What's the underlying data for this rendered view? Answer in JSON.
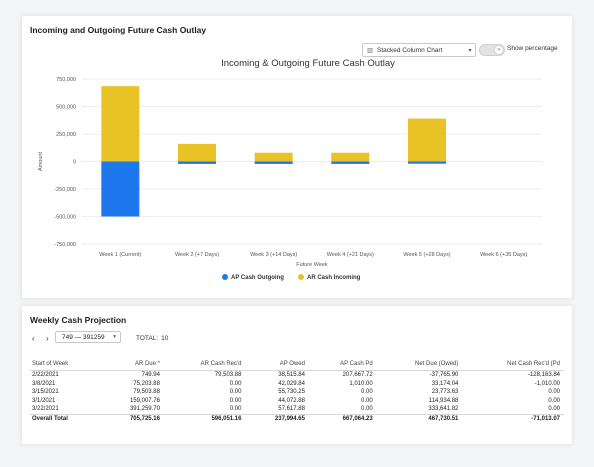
{
  "panel1": {
    "title": "Incoming and Outgoing Future Cash Outlay",
    "chart_type_select": {
      "icon": "bar-chart-icon",
      "value": "Stacked Column Chart"
    },
    "toggle": {
      "label": "Show percentage",
      "on": false
    }
  },
  "colors": {
    "ap": "#1d78f0",
    "ar": "#e9c225",
    "grid": "#e9e9e9",
    "text": "#555555"
  },
  "chart_data": {
    "type": "bar",
    "stacked": true,
    "title": "Incoming & Outgoing Future Cash Outlay",
    "xlabel": "Future Week",
    "ylabel": "Amount",
    "categories": [
      "Week 1 (Current)",
      "Week 2 (+7 Days)",
      "Week 3 (+14 Days)",
      "Week 4 (+21 Days)",
      "Week 5 (+28 Days)",
      "Week 6 (+35 Days)"
    ],
    "series": [
      {
        "name": "AP Cash Outgoing",
        "color": "#1d78f0",
        "values": [
          -500000,
          -22000,
          -22000,
          -22000,
          -20000,
          0
        ]
      },
      {
        "name": "AR Cash Incoming",
        "color": "#e9c225",
        "values": [
          685000,
          160000,
          80000,
          80000,
          390000,
          0
        ]
      }
    ],
    "ylim": [
      -750000,
      750000
    ],
    "yticks": [
      750000,
      500000,
      250000,
      0,
      -250000,
      -500000,
      -750000
    ],
    "ytick_labels": [
      "750,000",
      "500,000",
      "250,000",
      "0",
      "-250,000",
      "-500,000",
      "-750,000"
    ],
    "grid": true,
    "legend_position": "bottom"
  },
  "panel2": {
    "title": "Weekly Cash Projection",
    "pager": {
      "prev": "‹",
      "next": "›"
    },
    "range": "749 — 391259",
    "total_label": "TOTAL:",
    "total_count": "10",
    "columns": [
      "Start of Week",
      "AR Due",
      "AR Cash Rec'd",
      "AP Owed",
      "AP Cash Pd",
      "Net Due (Owed)",
      "Net Cash Rec'd (Pd"
    ],
    "sort_indicator": "*",
    "rows": [
      [
        "2/22/2021",
        "749.94",
        "79,503.88",
        "38,515.84",
        "207,667.72",
        "-37,765.90",
        "-128,163.84"
      ],
      [
        "3/8/2021",
        "75,203.88",
        "0.00",
        "42,029.84",
        "1,010.00",
        "33,174.04",
        "-1,010.00"
      ],
      [
        "3/15/2021",
        "79,503.88",
        "0.00",
        "55,730.25",
        "0.00",
        "23,773.63",
        "0.00"
      ],
      [
        "3/1/2021",
        "159,007.76",
        "0.00",
        "44,072.88",
        "0.00",
        "114,934.88",
        "0.00"
      ],
      [
        "3/22/2021",
        "391,259.70",
        "0.00",
        "57,617.88",
        "0.00",
        "333,641.82",
        "0.00"
      ]
    ],
    "total_row": [
      "Overall Total",
      "705,725.16",
      "596,051.16",
      "237,994.65",
      "667,064.23",
      "467,730.51",
      "-71,013.07"
    ]
  }
}
